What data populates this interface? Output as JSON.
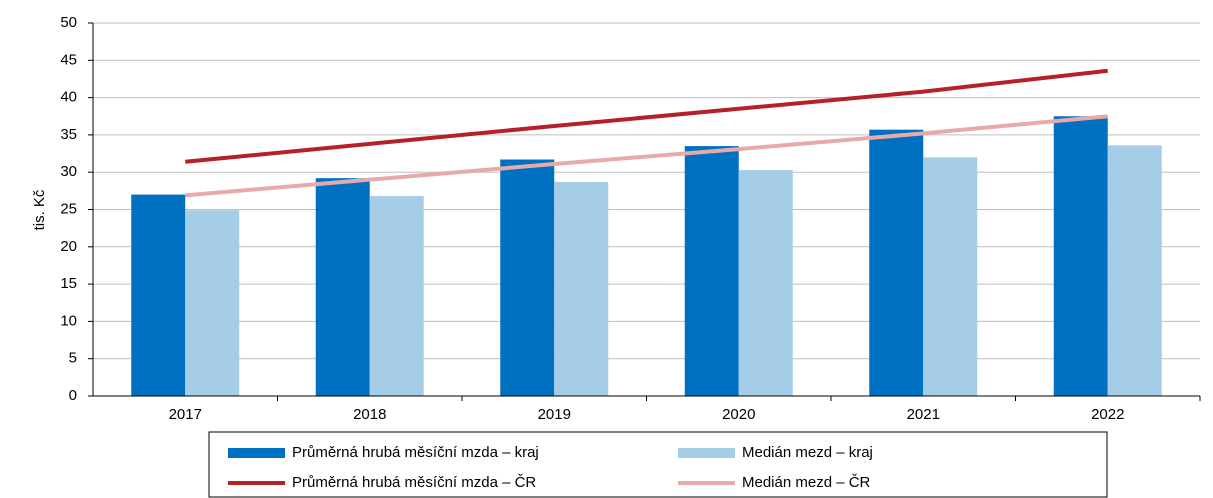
{
  "chart_data": {
    "type": "combo",
    "y_label": "tis. Kč",
    "categories": [
      "2017",
      "2018",
      "2019",
      "2020",
      "2021",
      "2022"
    ],
    "series": [
      {
        "name": "Průměrná hrubá měsíční mzda – kraj",
        "type": "bar",
        "color": "#0070c0",
        "values": [
          27.0,
          29.2,
          31.7,
          33.5,
          35.7,
          37.5
        ]
      },
      {
        "name": "Medián mezd – kraj",
        "type": "bar",
        "color": "#a6cde8",
        "values": [
          24.9,
          26.8,
          28.7,
          30.3,
          32.0,
          33.6
        ]
      },
      {
        "name": "Průměrná hrubá měsíční mzda – ČR",
        "type": "line",
        "color": "#b52126",
        "values": [
          31.4,
          33.8,
          36.2,
          38.5,
          40.8,
          43.6
        ]
      },
      {
        "name": "Medián mezd – ČR",
        "type": "line",
        "color": "#e6aaaa",
        "values": [
          26.9,
          29.0,
          31.1,
          33.1,
          35.2,
          37.5
        ]
      }
    ],
    "ylim": [
      0,
      50
    ],
    "yticks": [
      0,
      5,
      10,
      15,
      20,
      25,
      30,
      35,
      40,
      45,
      50
    ],
    "grid": true
  }
}
